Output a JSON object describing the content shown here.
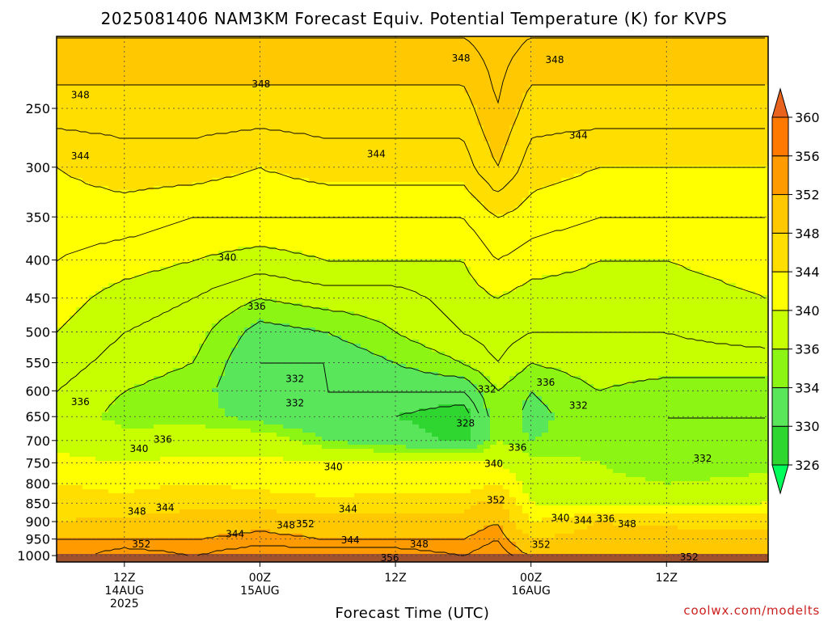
{
  "chart_data": {
    "type": "heatmap",
    "title": "2025081406 NAM3KM Forecast Equiv. Potential Temperature (K) for KVPS",
    "xlabel": "Forecast Time (UTC)",
    "ylabel": "",
    "credit": "coolwx.com/modelts",
    "y_scale": "log-pressure",
    "y_direction": "reversed",
    "ylim": [
      1000,
      200
    ],
    "xlim": [
      0,
      63
    ],
    "grid": true,
    "y_ticks": [
      250,
      300,
      350,
      400,
      450,
      500,
      550,
      600,
      650,
      700,
      750,
      800,
      850,
      900,
      950,
      1000
    ],
    "x_ticks": [
      {
        "hour": 6,
        "line1": "12Z",
        "line2": "14AUG",
        "line3": "2025"
      },
      {
        "hour": 18,
        "line1": "00Z",
        "line2": "15AUG",
        "line3": ""
      },
      {
        "hour": 30,
        "line1": "12Z",
        "line2": "",
        "line3": ""
      },
      {
        "hour": 42,
        "line1": "00Z",
        "line2": "16AUG",
        "line3": ""
      },
      {
        "hour": 54,
        "line1": "12Z",
        "line2": "",
        "line3": ""
      }
    ],
    "colorbar": {
      "position": "right",
      "levels": [
        326,
        330,
        334,
        336,
        340,
        344,
        348,
        352,
        356,
        360
      ],
      "colors": [
        "#00ff5a",
        "#2fd62f",
        "#5ae65a",
        "#8cf514",
        "#c8ff00",
        "#ffff00",
        "#ffde00",
        "#ffc800",
        "#ff9b00",
        "#ff7800",
        "#e8641e"
      ]
    },
    "profiles": [
      {
        "hour": 0,
        "levels": [
          1000,
          950,
          900,
          850,
          800,
          750,
          700,
          650,
          600,
          550,
          500,
          450,
          400,
          350,
          300,
          250,
          200
        ],
        "theta_e": [
          352,
          352,
          348,
          346,
          344,
          341,
          339,
          338,
          338,
          339,
          340,
          341,
          342,
          343,
          344,
          347,
          350
        ]
      },
      {
        "hour": 6,
        "levels": [
          1000,
          950,
          900,
          850,
          800,
          750,
          700,
          650,
          600,
          550,
          500,
          450,
          400,
          350,
          300,
          250,
          200
        ],
        "theta_e": [
          356,
          352,
          349,
          345,
          343,
          340,
          337,
          335,
          336,
          337,
          338,
          339,
          341,
          343,
          345,
          347,
          350
        ]
      },
      {
        "hour": 12,
        "levels": [
          1000,
          950,
          900,
          850,
          800,
          750,
          700,
          650,
          600,
          550,
          500,
          450,
          400,
          350,
          300,
          250,
          200
        ],
        "theta_e": [
          354,
          352,
          350,
          347,
          344,
          341,
          338,
          335,
          335,
          336,
          337,
          338,
          340,
          342,
          345,
          347,
          350
        ]
      },
      {
        "hour": 18,
        "levels": [
          1000,
          950,
          900,
          850,
          800,
          750,
          700,
          650,
          600,
          550,
          500,
          450,
          400,
          350,
          300,
          250,
          200
        ],
        "theta_e": [
          356,
          353,
          351,
          346,
          343,
          341,
          338,
          333,
          332,
          332,
          333,
          336,
          339,
          342,
          344,
          347,
          350
        ]
      },
      {
        "hour": 24,
        "levels": [
          1000,
          950,
          900,
          850,
          800,
          750,
          700,
          650,
          600,
          550,
          500,
          450,
          400,
          350,
          300,
          250,
          200
        ],
        "theta_e": [
          356,
          352,
          350,
          345,
          342,
          340,
          334,
          331,
          332,
          332,
          334,
          337,
          340,
          342,
          345,
          347,
          350
        ]
      },
      {
        "hour": 30,
        "levels": [
          1000,
          950,
          900,
          850,
          800,
          750,
          700,
          650,
          600,
          550,
          500,
          450,
          400,
          350,
          300,
          250,
          200
        ],
        "theta_e": [
          356,
          352,
          350,
          346,
          342,
          340,
          332,
          330,
          332,
          334,
          336,
          337,
          340,
          342,
          345,
          347,
          350
        ]
      },
      {
        "hour": 36,
        "levels": [
          1000,
          950,
          900,
          850,
          800,
          750,
          700,
          650,
          600,
          550,
          500,
          450,
          400,
          350,
          300,
          250,
          200
        ],
        "theta_e": [
          354,
          352,
          350,
          346,
          342,
          340,
          329,
          328,
          332,
          336,
          338,
          339,
          340,
          342,
          345,
          347,
          350
        ]
      },
      {
        "hour": 39,
        "levels": [
          1000,
          950,
          900,
          850,
          800,
          750,
          700,
          650,
          600,
          550,
          500,
          450,
          400,
          350,
          300,
          250,
          200
        ],
        "theta_e": [
          356,
          354,
          352,
          350,
          344,
          340,
          336,
          336,
          336,
          338,
          339,
          340,
          342,
          344,
          348,
          350,
          351
        ]
      },
      {
        "hour": 42,
        "levels": [
          1000,
          950,
          900,
          850,
          800,
          750,
          700,
          650,
          600,
          550,
          500,
          450,
          400,
          350,
          300,
          250,
          200
        ],
        "theta_e": [
          352,
          348,
          344,
          340,
          338,
          337,
          334,
          333,
          334,
          336,
          338,
          339,
          341,
          343,
          345,
          347,
          350
        ]
      },
      {
        "hour": 48,
        "levels": [
          1000,
          950,
          900,
          850,
          800,
          750,
          700,
          650,
          600,
          550,
          500,
          450,
          400,
          350,
          300,
          250,
          200
        ],
        "theta_e": [
          352,
          350,
          348,
          338,
          337,
          336,
          335,
          336,
          336,
          337,
          338,
          339,
          340,
          342,
          344,
          347,
          350
        ]
      },
      {
        "hour": 54,
        "levels": [
          1000,
          950,
          900,
          850,
          800,
          750,
          700,
          650,
          600,
          550,
          500,
          450,
          400,
          350,
          300,
          250,
          200
        ],
        "theta_e": [
          352,
          350,
          347,
          338,
          336,
          334,
          334,
          334,
          335,
          337,
          338,
          339,
          340,
          342,
          344,
          347,
          350
        ]
      },
      {
        "hour": 63,
        "levels": [
          1000,
          950,
          900,
          850,
          800,
          750,
          700,
          650,
          600,
          550,
          500,
          450,
          400,
          350,
          300,
          250,
          200
        ],
        "theta_e": [
          350,
          349,
          347,
          340,
          337,
          335,
          334,
          334,
          335,
          337,
          339,
          340,
          341,
          342,
          344,
          347,
          350
        ]
      }
    ],
    "contour_labels": [
      {
        "text": "348",
        "hour": 2.1,
        "p": 240
      },
      {
        "text": "348",
        "hour": 18.1,
        "p": 232
      },
      {
        "text": "348",
        "hour": 35.8,
        "p": 214
      },
      {
        "text": "348",
        "hour": 44.1,
        "p": 215
      },
      {
        "text": "344",
        "hour": 2.1,
        "p": 290
      },
      {
        "text": "344",
        "hour": 28.3,
        "p": 288
      },
      {
        "text": "344",
        "hour": 46.2,
        "p": 272
      },
      {
        "text": "340",
        "hour": 15.1,
        "p": 397
      },
      {
        "text": "336",
        "hour": 17.7,
        "p": 462
      },
      {
        "text": "336",
        "hour": 2.1,
        "p": 621
      },
      {
        "text": "332",
        "hour": 21.1,
        "p": 578
      },
      {
        "text": "332",
        "hour": 21.1,
        "p": 623
      },
      {
        "text": "332",
        "hour": 38.1,
        "p": 597
      },
      {
        "text": "336",
        "hour": 43.3,
        "p": 585
      },
      {
        "text": "332",
        "hour": 46.2,
        "p": 628
      },
      {
        "text": "328",
        "hour": 36.2,
        "p": 664
      },
      {
        "text": "336",
        "hour": 9.4,
        "p": 698
      },
      {
        "text": "340",
        "hour": 7.3,
        "p": 718
      },
      {
        "text": "340",
        "hour": 24.5,
        "p": 760
      },
      {
        "text": "340",
        "hour": 38.7,
        "p": 752
      },
      {
        "text": "336",
        "hour": 40.8,
        "p": 715
      },
      {
        "text": "332",
        "hour": 57.2,
        "p": 740
      },
      {
        "text": "348",
        "hour": 7.1,
        "p": 872
      },
      {
        "text": "344",
        "hour": 9.6,
        "p": 862
      },
      {
        "text": "344",
        "hour": 25.8,
        "p": 866
      },
      {
        "text": "352",
        "hour": 38.9,
        "p": 842
      },
      {
        "text": "340",
        "hour": 44.6,
        "p": 890
      },
      {
        "text": "344",
        "hour": 46.6,
        "p": 897
      },
      {
        "text": "336",
        "hour": 48.6,
        "p": 892
      },
      {
        "text": "348",
        "hour": 50.5,
        "p": 907
      },
      {
        "text": "348",
        "hour": 20.3,
        "p": 910
      },
      {
        "text": "352",
        "hour": 22.0,
        "p": 907
      },
      {
        "text": "344",
        "hour": 15.8,
        "p": 935
      },
      {
        "text": "344",
        "hour": 26.0,
        "p": 953
      },
      {
        "text": "352",
        "hour": 7.5,
        "p": 965
      },
      {
        "text": "348",
        "hour": 32.1,
        "p": 965
      },
      {
        "text": "352",
        "hour": 42.9,
        "p": 966
      },
      {
        "text": "356",
        "hour": 29.5,
        "p": 1007
      },
      {
        "text": "352",
        "hour": 56.0,
        "p": 1005
      }
    ]
  }
}
